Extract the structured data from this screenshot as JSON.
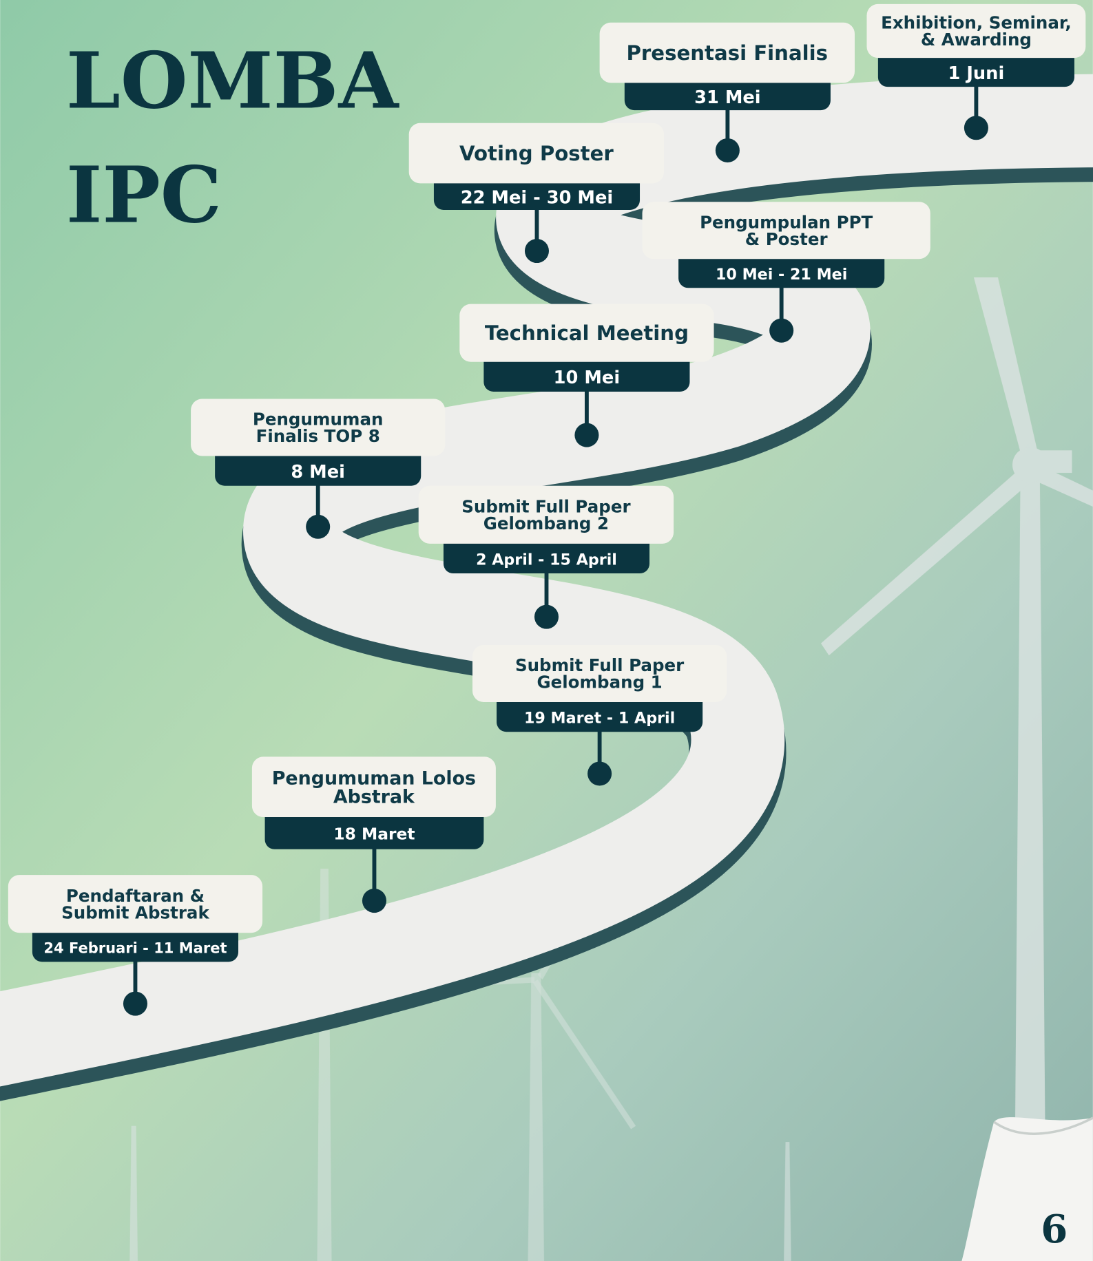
{
  "title": {
    "lines": [
      "LOMBA",
      "IPC"
    ]
  },
  "events": [
    {
      "label_lines": [
        "Pendaftaran &",
        "Submit Abstrak"
      ],
      "date": "24 Februari - 11 Maret"
    },
    {
      "label_lines": [
        "Pengumuman Lolos",
        "Abstrak"
      ],
      "date": "18 Maret"
    },
    {
      "label_lines": [
        "Submit Full Paper",
        "Gelombang 1"
      ],
      "date": "19 Maret - 1 April"
    },
    {
      "label_lines": [
        "Submit Full Paper",
        "Gelombang 2"
      ],
      "date": "2 April - 15 April"
    },
    {
      "label_lines": [
        "Pengumuman",
        "Finalis TOP 8"
      ],
      "date": "8 Mei"
    },
    {
      "label_lines": [
        "Technical Meeting"
      ],
      "date": "10 Mei"
    },
    {
      "label_lines": [
        "Pengumpulan PPT",
        "& Poster"
      ],
      "date": "10 Mei - 21 Mei"
    },
    {
      "label_lines": [
        "Voting Poster"
      ],
      "date": "22 Mei - 30 Mei"
    },
    {
      "label_lines": [
        "Presentasi Finalis"
      ],
      "date": "31 Mei"
    },
    {
      "label_lines": [
        "Exhibition, Seminar,",
        "& Awarding"
      ],
      "date": "1 Juni"
    }
  ],
  "page_number": "6"
}
